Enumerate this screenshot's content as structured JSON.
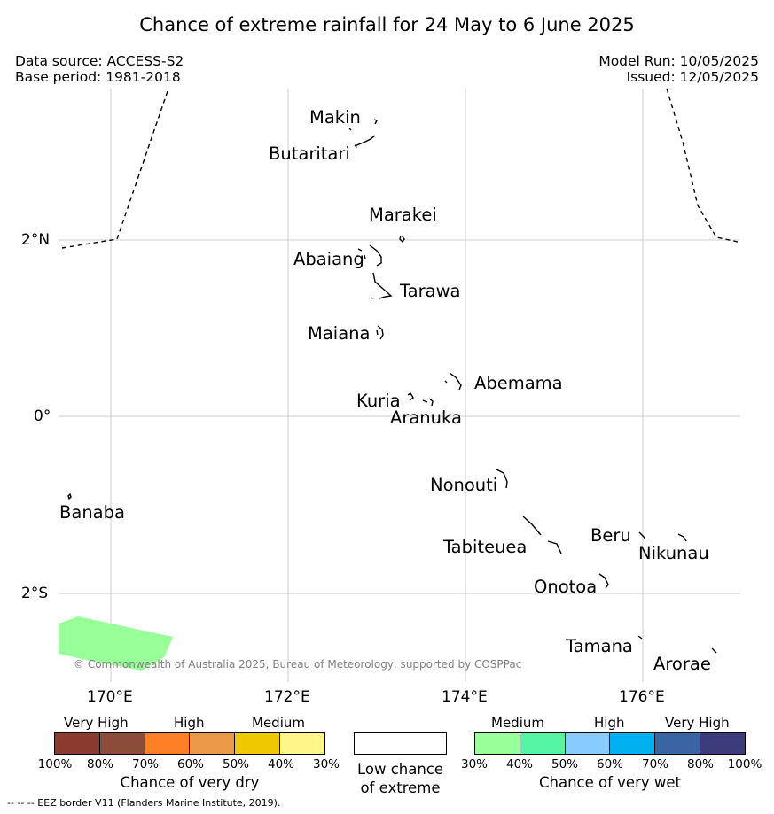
{
  "title": "Chance of extreme rainfall for 24 May to 6 June 2025",
  "data_source": "Data source: ACCESS-S2",
  "base_period": "Base period: 1981-2018",
  "model_run": "Model Run: 10/05/2025",
  "issued": "Issued: 12/05/2025",
  "axes": {
    "lat_labels": [
      "2°N",
      "0°",
      "2°S"
    ],
    "lon_labels": [
      "170°E",
      "172°E",
      "174°E",
      "176°E"
    ]
  },
  "places": {
    "makin": "Makin",
    "butaritari": "Butaritari",
    "marakei": "Marakei",
    "abaiang": "Abaiang",
    "tarawa": "Tarawa",
    "maiana": "Maiana",
    "abemama": "Abemama",
    "kuria": "Kuria",
    "aranuka": "Aranuka",
    "nonouti": "Nonouti",
    "banaba": "Banaba",
    "tabiteuea": "Tabiteuea",
    "beru": "Beru",
    "nikunau": "Nikunau",
    "onotoa": "Onotoa",
    "tamana": "Tamana",
    "arorae": "Arorae"
  },
  "copyright": "© Commonwealth of Australia 2025, Bureau of Meteorology, supported by COSPPac",
  "legend": {
    "dry": {
      "categories": [
        "Very High",
        "High",
        "Medium"
      ],
      "colors": [
        "#8b3a2f",
        "#8b4c3a",
        "#ff7f27",
        "#ec9a4a",
        "#f0c800",
        "#fff68a"
      ],
      "ticks": [
        "100%",
        "80%",
        "70%",
        "60%",
        "50%",
        "40%",
        "30%"
      ],
      "title": "Chance of very dry"
    },
    "low": {
      "title_line1": "Low chance",
      "title_line2": "of extreme",
      "color": "#ffffff"
    },
    "wet": {
      "categories": [
        "Medium",
        "High",
        "Very High"
      ],
      "colors": [
        "#99ff99",
        "#55f5a5",
        "#87cbff",
        "#00b0f0",
        "#3a64a4",
        "#3c3c7c"
      ],
      "ticks": [
        "30%",
        "40%",
        "50%",
        "60%",
        "70%",
        "80%",
        "100%"
      ],
      "title": "Chance of very wet"
    }
  },
  "eez_note": "--  --  -- EEZ border V11 (Flanders Marine Institute, 2019).",
  "map_colors": {
    "wet_medium": "#99ff99",
    "grid": "#cccccc",
    "coast": "#000000"
  }
}
